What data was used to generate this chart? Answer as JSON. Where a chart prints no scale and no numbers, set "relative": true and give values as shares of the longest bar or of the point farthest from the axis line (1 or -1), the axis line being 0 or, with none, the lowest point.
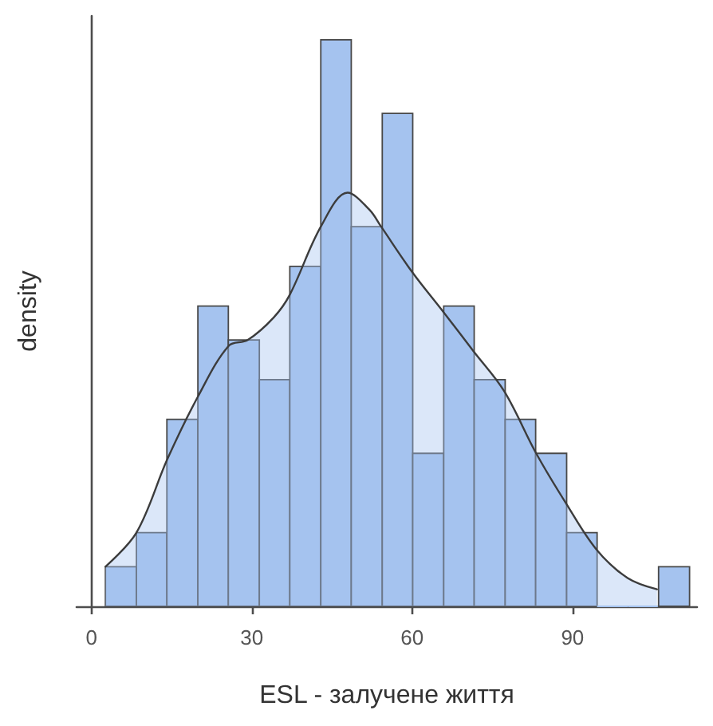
{
  "chart_data": {
    "type": "histogram",
    "xlabel": "ESL - залучене життя",
    "ylabel": "density",
    "relative": true,
    "bins": [
      2.6,
      8.4,
      14.1,
      19.9,
      25.6,
      31.4,
      37.1,
      42.9,
      48.6,
      54.4,
      60.1,
      65.9,
      71.6,
      77.4,
      83.1,
      88.9,
      94.6,
      100.4,
      106.1,
      111.9
    ],
    "xlim": [
      -2.8,
      113.3
    ],
    "xticks": [
      0,
      30,
      60,
      90
    ],
    "series": [
      {
        "values": [
          0.07,
          0.13,
          0.33,
          0.53,
          0.47,
          0.4,
          0.6,
          1,
          0.67,
          0.87,
          0.27,
          0.53,
          0.4,
          0.33,
          0.27,
          0.13,
          0,
          0,
          0.07
        ],
        "color": "#a5c3ef"
      },
      {
        "type": "area",
        "x": [
          2.6,
          8.4,
          14.2,
          19.9,
          25.7,
          29.2,
          34.1,
          37.1,
          42.9,
          47.9,
          52,
          54.2,
          60,
          65.8,
          71.5,
          77.2,
          83.2,
          88.9,
          94.5,
          100.3,
          105.8
        ],
        "values": [
          0.07,
          0.13,
          0.26,
          0.37,
          0.46,
          0.47,
          0.51,
          0.55,
          0.67,
          0.73,
          0.7,
          0.67,
          0.59,
          0.52,
          0.45,
          0.38,
          0.27,
          0.18,
          0.1,
          0.05,
          0.03
        ],
        "color": "#a5c3ef"
      }
    ]
  }
}
